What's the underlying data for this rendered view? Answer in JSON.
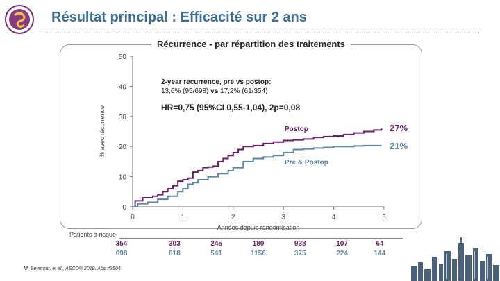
{
  "slide": {
    "title": "Résultat principal : Efficacité sur 2 ans",
    "citation": "M. Seymour, et al., ASCO® 2019, Abs #3504"
  },
  "colors": {
    "title": "#3d6f95",
    "postop": "#6b1e66",
    "prepostop": "#5d86a3",
    "rule": "#8a6d99"
  },
  "chart_data": {
    "type": "line",
    "title": "Récurrence - par répartition des traitements",
    "xlabel": "Années depuis randomisation",
    "ylabel": "% avec récurrence",
    "xlim": [
      0,
      5
    ],
    "ylim": [
      0,
      50
    ],
    "x_ticks": [
      0,
      1,
      2,
      3,
      4,
      5
    ],
    "y_ticks": [
      0,
      10,
      20,
      30,
      40,
      50
    ],
    "grid": false,
    "series": [
      {
        "name": "Postop",
        "color": "#6b1e66",
        "end_label": "27%",
        "points": [
          [
            0,
            0
          ],
          [
            0.05,
            2
          ],
          [
            0.2,
            3
          ],
          [
            0.4,
            3.5
          ],
          [
            0.5,
            4
          ],
          [
            0.6,
            5
          ],
          [
            0.7,
            6
          ],
          [
            0.8,
            7
          ],
          [
            0.9,
            8.5
          ],
          [
            1.0,
            9
          ],
          [
            1.1,
            9.5
          ],
          [
            1.2,
            11.5
          ],
          [
            1.3,
            12
          ],
          [
            1.4,
            13
          ],
          [
            1.5,
            13.2
          ],
          [
            1.6,
            13.5
          ],
          [
            1.7,
            15
          ],
          [
            1.8,
            16
          ],
          [
            1.9,
            17
          ],
          [
            2.0,
            18
          ],
          [
            2.1,
            19
          ],
          [
            2.2,
            20
          ],
          [
            2.4,
            20.3
          ],
          [
            2.6,
            21
          ],
          [
            2.8,
            21.5
          ],
          [
            3.0,
            22
          ],
          [
            3.2,
            22.2
          ],
          [
            3.4,
            22.5
          ],
          [
            3.6,
            23
          ],
          [
            3.8,
            23.3
          ],
          [
            4.0,
            23.5
          ],
          [
            4.2,
            24
          ],
          [
            4.4,
            24.5
          ],
          [
            4.6,
            25
          ],
          [
            4.8,
            25.5
          ],
          [
            4.95,
            26
          ]
        ]
      },
      {
        "name": "Pre & Postop",
        "color": "#5d86a3",
        "end_label": "21%",
        "points": [
          [
            0,
            0
          ],
          [
            0.1,
            1
          ],
          [
            0.3,
            1.5
          ],
          [
            0.5,
            2.5
          ],
          [
            0.7,
            3.5
          ],
          [
            0.9,
            5
          ],
          [
            1.0,
            6
          ],
          [
            1.1,
            7.5
          ],
          [
            1.2,
            8
          ],
          [
            1.3,
            9
          ],
          [
            1.5,
            10
          ],
          [
            1.7,
            11
          ],
          [
            1.9,
            12
          ],
          [
            2.0,
            13
          ],
          [
            2.2,
            15
          ],
          [
            2.4,
            16
          ],
          [
            2.6,
            16.5
          ],
          [
            2.8,
            17
          ],
          [
            3.0,
            18
          ],
          [
            3.2,
            19
          ],
          [
            3.4,
            19.2
          ],
          [
            3.6,
            19.5
          ],
          [
            3.8,
            19.7
          ],
          [
            4.0,
            20
          ],
          [
            4.2,
            20
          ],
          [
            4.4,
            20.2
          ],
          [
            4.6,
            20.3
          ],
          [
            4.8,
            20.3
          ],
          [
            4.95,
            20.3
          ]
        ]
      }
    ],
    "series_labels": {
      "postop": "Postop",
      "prepostop": "Pre & Postop"
    },
    "annotation": {
      "line1": "2-year recurrence, pre vs postop:",
      "line2_a": "13,6% (95/698) ",
      "line2_vs": "vs",
      "line2_b": " 17,2% (61/354)",
      "hr": "HR=0,75 (95%CI 0,55-1,04), 2p=0,08"
    },
    "risk_table": {
      "header": "Patients à risque",
      "postop": [
        "354",
        "303",
        "245",
        "180",
        "938",
        "107",
        "64"
      ],
      "prepostop": [
        "698",
        "618",
        "541",
        "1156",
        "375",
        "224",
        "144"
      ]
    }
  }
}
